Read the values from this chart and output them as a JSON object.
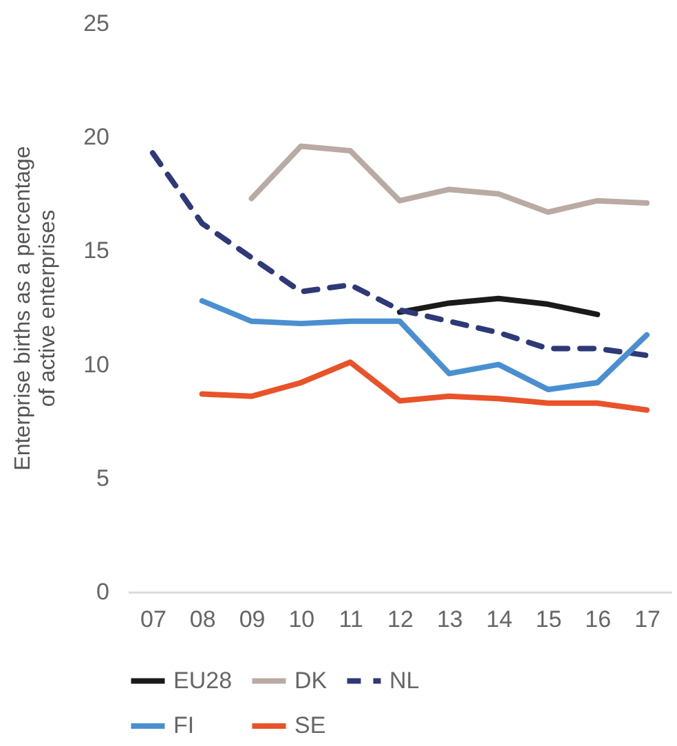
{
  "chart_data": {
    "type": "line",
    "ylabel": "Enterprise births as a percentage of active enterprises",
    "categories": [
      "07",
      "08",
      "09",
      "10",
      "11",
      "12",
      "13",
      "14",
      "15",
      "16",
      "17"
    ],
    "series": [
      {
        "name": "EU28",
        "color": "#1a1a1a",
        "values": [
          null,
          null,
          null,
          null,
          null,
          12.3,
          12.7,
          12.9,
          12.65,
          12.2,
          null
        ]
      },
      {
        "name": "DK",
        "color": "#b9aba3",
        "values": [
          null,
          null,
          17.3,
          19.6,
          19.4,
          17.2,
          17.7,
          17.5,
          16.7,
          17.2,
          17.1
        ]
      },
      {
        "name": "NL",
        "color": "#2e3a78",
        "line_style": "dashed",
        "values": [
          19.3,
          16.2,
          14.7,
          13.2,
          13.5,
          12.4,
          11.9,
          11.4,
          10.7,
          10.7,
          10.4
        ]
      },
      {
        "name": "FI",
        "color": "#4a8fcf",
        "values": [
          null,
          12.8,
          11.9,
          11.8,
          11.9,
          11.9,
          9.6,
          10.0,
          8.9,
          9.2,
          11.3
        ]
      },
      {
        "name": "SE",
        "color": "#e8532a",
        "values": [
          null,
          8.7,
          8.6,
          9.2,
          10.1,
          8.4,
          8.6,
          8.5,
          8.3,
          8.3,
          8.0
        ]
      }
    ],
    "ylim": [
      0,
      25
    ],
    "yticks": [
      0,
      5,
      10,
      15,
      20,
      25
    ],
    "grid": false,
    "legend": "bottom",
    "line_style": "solid",
    "marker": "none"
  }
}
